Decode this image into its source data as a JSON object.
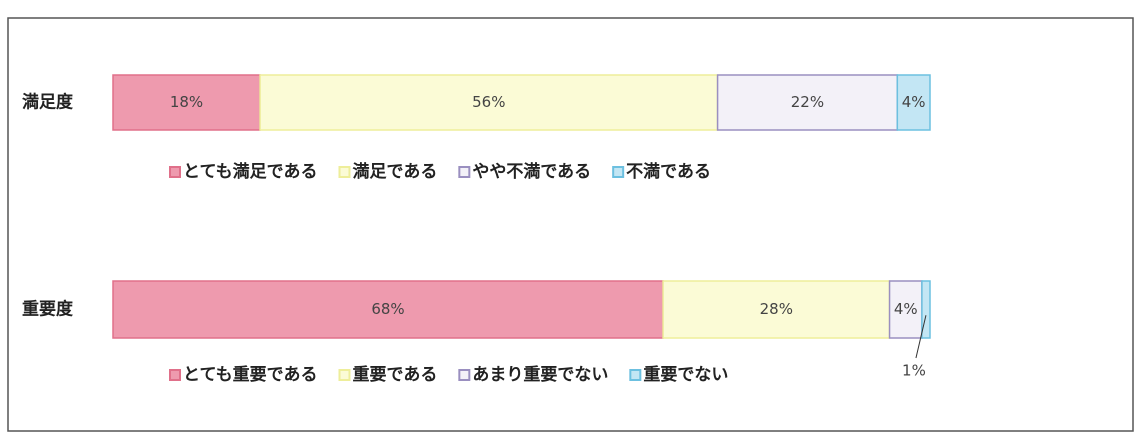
{
  "chart_data": [
    {
      "type": "stacked-bar",
      "categories": [
        "満足度"
      ],
      "xlim": [
        0,
        100
      ],
      "series": [
        {
          "name": "とても満足である",
          "color": "#ee9aae",
          "values": [
            18
          ],
          "value_labels": [
            "18%"
          ]
        },
        {
          "name": "満足である",
          "color": "#fbfbd6",
          "values": [
            56
          ],
          "value_labels": [
            "56%"
          ]
        },
        {
          "name": "やや不満である",
          "color": "#f3f1f8",
          "values": [
            22
          ],
          "value_labels": [
            "22%"
          ]
        },
        {
          "name": "不満である",
          "color": "#c3e6f4",
          "values": [
            4
          ],
          "value_labels": [
            "4%"
          ]
        }
      ]
    },
    {
      "type": "stacked-bar",
      "categories": [
        "重要度"
      ],
      "xlim": [
        0,
        101
      ],
      "series": [
        {
          "name": "とても重要である",
          "color": "#ee9aae",
          "values": [
            68
          ],
          "value_labels": [
            "68%"
          ]
        },
        {
          "name": "重要である",
          "color": "#fbfbd6",
          "values": [
            28
          ],
          "value_labels": [
            "28%"
          ]
        },
        {
          "name": "あまり重要でない",
          "color": "#f3f1f8",
          "values": [
            4
          ],
          "value_labels": [
            "4%"
          ]
        },
        {
          "name": "重要でない",
          "color": "#c3e6f4",
          "values": [
            1
          ],
          "value_labels": [
            "1%"
          ]
        }
      ]
    }
  ]
}
